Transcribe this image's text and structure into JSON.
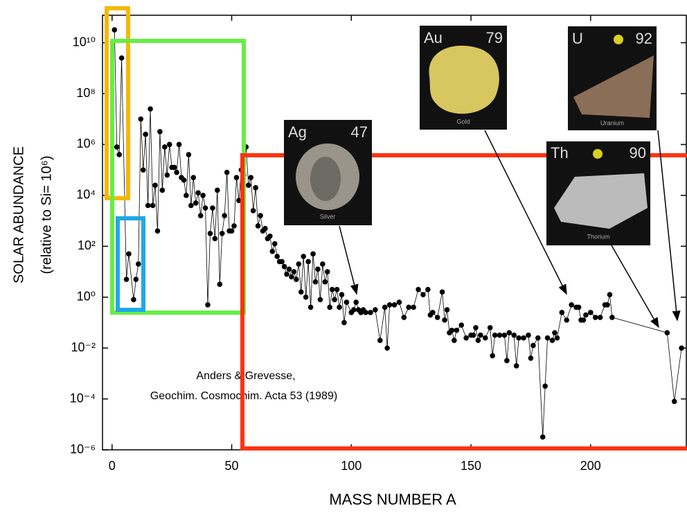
{
  "chart_data": {
    "type": "line",
    "xlabel": "MASS NUMBER A",
    "ylabel": [
      "SOLAR ABUNDANCE",
      "(relative to Si= 10⁶)"
    ],
    "annotation": [
      "Anders & Grevesse,",
      "Geochim. Cosmochim. Acta 53 (1989)"
    ],
    "elements": [
      {
        "symbol": "Ag",
        "number": "47",
        "name": "Silver"
      },
      {
        "symbol": "Au",
        "number": "79",
        "name": "Gold"
      },
      {
        "symbol": "U",
        "number": "92",
        "name": "Uranium"
      },
      {
        "symbol": "Th",
        "number": "90",
        "name": "Thorium"
      }
    ],
    "log_y": true,
    "color": "#000000",
    "xlim": [
      -4,
      240
    ],
    "xticks": [
      0,
      50,
      100,
      150,
      200
    ],
    "ylim": [
      1e-06,
      120000000000.0
    ],
    "yticks": [
      {
        "value": 1e-06,
        "label": "10⁻⁶"
      },
      {
        "value": 0.0001,
        "label": "10⁻⁴"
      },
      {
        "value": 0.01,
        "label": "10⁻²"
      },
      {
        "value": 1,
        "label": "10⁰"
      },
      {
        "value": 100,
        "label": "10²"
      },
      {
        "value": 10000,
        "label": "10⁴"
      },
      {
        "value": 1000000,
        "label": "10⁶"
      },
      {
        "value": 100000000,
        "label": "10⁸"
      },
      {
        "value": 10000000000,
        "label": "10¹⁰"
      }
    ],
    "x": [
      1,
      2,
      3,
      4,
      6,
      7,
      9,
      10,
      11,
      12,
      13,
      14,
      15,
      16,
      17,
      18,
      19,
      20,
      21,
      22,
      23,
      24,
      25,
      26,
      27,
      28,
      29,
      30,
      31,
      32,
      33,
      34,
      35,
      36,
      37,
      38,
      39,
      40,
      41,
      42,
      43,
      44,
      45,
      46,
      47,
      48,
      49,
      50,
      51,
      52,
      53,
      54,
      55,
      56,
      57,
      58,
      59,
      60,
      61,
      62,
      63,
      64,
      65,
      66,
      67,
      68,
      69,
      70,
      71,
      72,
      73,
      74,
      75,
      76,
      77,
      78,
      79,
      80,
      81,
      82,
      83,
      84,
      85,
      86,
      87,
      88,
      89,
      90,
      91,
      92,
      93,
      94,
      95,
      96,
      97,
      98,
      100,
      101,
      102,
      103,
      104,
      105,
      106,
      108,
      110,
      112,
      114,
      115,
      116,
      118,
      120,
      122,
      124,
      126,
      128,
      130,
      132,
      133,
      134,
      136,
      138,
      139,
      140,
      141,
      142,
      143,
      144,
      146,
      148,
      150,
      151,
      152,
      153,
      154,
      156,
      158,
      159,
      160,
      162,
      164,
      165,
      166,
      168,
      169,
      170,
      172,
      174,
      175,
      176,
      178,
      180,
      181,
      182,
      184,
      185,
      186,
      188,
      190,
      192,
      194,
      195,
      196,
      197,
      198,
      200,
      202,
      204,
      206,
      207,
      208,
      209,
      232,
      235,
      238
    ],
    "values": [
      32000000000.0,
      800000.0,
      400000.0,
      2500000000.0,
      5,
      50,
      0.8,
      5,
      20,
      10000000.0,
      100000.0,
      2500000.0,
      4000.0,
      25000000.0,
      4000.0,
      25000.0,
      400,
      3200000.0,
      16000.0,
      800000.0,
      63000.0,
      1000000.0,
      126000.0,
      126000.0,
      80000.0,
      1000000.0,
      50000.0,
      40000.0,
      10000.0,
      400000.0,
      4000.0,
      50000.0,
      5000.0,
      12600.0,
      1600.0,
      10000.0,
      3200.0,
      0.5,
      320,
      3200.0,
      200,
      16000.0,
      3.2,
      320,
      1600.0,
      80000.0,
      400,
      400,
      630,
      50000.0,
      6300.0,
      100000.0,
      63000.0,
      800000.0,
      25000.0,
      50000.0,
      2500.0,
      20000.0,
      630,
      1600.0,
      400,
      500,
      200,
      250,
      63,
      126,
      40,
      25,
      25,
      16,
      8,
      12.6,
      6.3,
      10,
      5,
      20,
      1.6,
      40,
      1,
      25,
      0.4,
      50,
      4,
      12.6,
      0.8,
      20,
      4,
      10,
      0.4,
      2,
      0.8,
      2,
      0.4,
      1.26,
      0.1,
      0.63,
      0.25,
      0.32,
      0.63,
      0.32,
      0.25,
      0.32,
      0.25,
      0.25,
      0.32,
      0.02,
      0.4,
      0.01,
      0.5,
      0.5,
      0.63,
      0.16,
      0.4,
      0.4,
      2,
      1.26,
      2,
      0.2,
      0.25,
      0.16,
      1.6,
      0.126,
      0.32,
      0.04,
      0.05,
      0.02,
      0.05,
      0.08,
      0.025,
      0.032,
      0.032,
      0.063,
      0.02,
      0.032,
      0.025,
      0.063,
      0.005,
      0.032,
      0.032,
      0.032,
      0.0032,
      0.04,
      0.032,
      0.002,
      0.025,
      0.025,
      0.032,
      0.004,
      0.0126,
      0.025,
      3.2e-06,
      0.00032,
      0.025,
      0.02,
      0.04,
      0.025,
      0.25,
      0.126,
      0.5,
      0.4,
      0.4,
      0.126,
      0.126,
      0.2,
      0.25,
      0.16,
      0.16,
      0.5,
      0.5,
      1.26,
      0.16,
      0.04,
      8e-05,
      0.01
    ]
  }
}
